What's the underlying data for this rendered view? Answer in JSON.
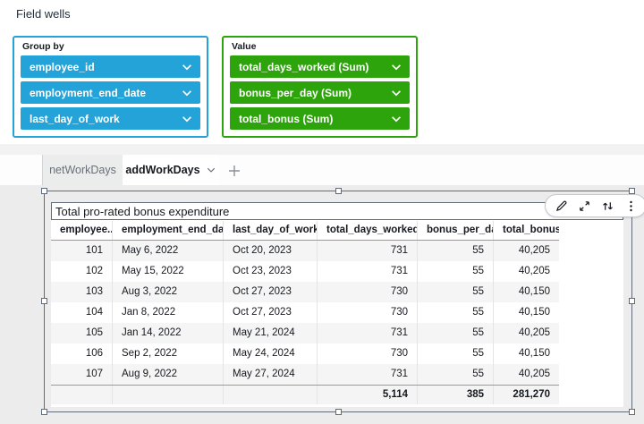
{
  "page": {
    "section_title": "Field wells"
  },
  "field_wells": {
    "group_by": {
      "label": "Group by",
      "accent": "#24A3D9",
      "items": [
        "employee_id",
        "employment_end_date",
        "last_day_of_work"
      ]
    },
    "value": {
      "label": "Value",
      "accent": "#2EA40C",
      "items": [
        "total_days_worked (Sum)",
        "bonus_per_day (Sum)",
        "total_bonus (Sum)"
      ]
    }
  },
  "tabs": {
    "inactive_tab": "netWorkDays",
    "active_tab": "addWorkDays"
  },
  "visual": {
    "title": "Total pro-rated bonus expenditure",
    "toolbar_icons": [
      "edit-icon",
      "maximize-icon",
      "swap-icon",
      "menu-icon"
    ],
    "table": {
      "columns": [
        {
          "label": "employee..",
          "align": "right"
        },
        {
          "label": "employment_end_date",
          "align": "left"
        },
        {
          "label": "last_day_of_work",
          "align": "left"
        },
        {
          "label": "total_days_worked",
          "align": "right"
        },
        {
          "label": "bonus_per_day",
          "align": "right"
        },
        {
          "label": "total_bonus",
          "align": "right"
        }
      ],
      "rows": [
        [
          "101",
          "May 6, 2022",
          "Oct 20, 2023",
          "731",
          "55",
          "40,205"
        ],
        [
          "102",
          "May 15, 2022",
          "Oct 23, 2023",
          "731",
          "55",
          "40,205"
        ],
        [
          "103",
          "Aug 3, 2022",
          "Oct 27, 2023",
          "730",
          "55",
          "40,150"
        ],
        [
          "104",
          "Jan 8, 2022",
          "Oct 27, 2023",
          "730",
          "55",
          "40,150"
        ],
        [
          "105",
          "Jan 14, 2022",
          "May 21, 2024",
          "731",
          "55",
          "40,205"
        ],
        [
          "106",
          "Sep 2, 2022",
          "May 24, 2024",
          "730",
          "55",
          "40,150"
        ],
        [
          "107",
          "Aug 9, 2022",
          "May 27, 2024",
          "731",
          "55",
          "40,205"
        ]
      ],
      "totals": [
        "",
        "",
        "",
        "5,114",
        "385",
        "281,270"
      ]
    }
  }
}
